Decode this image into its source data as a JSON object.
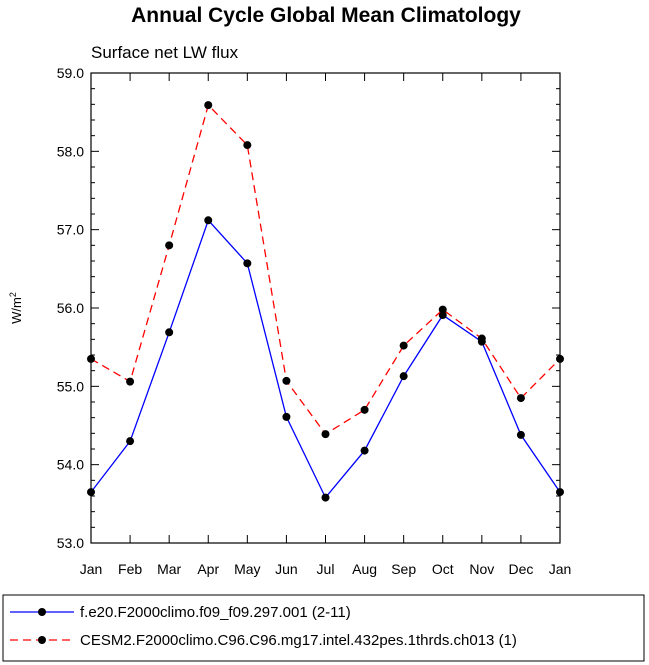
{
  "chart_data": {
    "type": "line",
    "title": "Annual Cycle Global Mean Climatology",
    "subtitle": "Surface net LW flux",
    "ylabel": "W/m",
    "ylabel_sup": "2",
    "categories": [
      "Jan",
      "Feb",
      "Mar",
      "Apr",
      "May",
      "Jun",
      "Jul",
      "Aug",
      "Sep",
      "Oct",
      "Nov",
      "Dec",
      "Jan"
    ],
    "ylim": [
      53.0,
      59.0
    ],
    "yticks": [
      "53.0",
      "54.0",
      "55.0",
      "56.0",
      "57.0",
      "58.0",
      "59.0"
    ],
    "series": [
      {
        "name": "f.e20.F2000climo.f09_f09.297.001 (2-11)",
        "color": "#0000ff",
        "dash": "solid",
        "values": [
          53.65,
          54.3,
          55.69,
          57.12,
          56.57,
          54.61,
          53.58,
          54.18,
          55.13,
          55.91,
          55.57,
          54.38,
          53.65
        ]
      },
      {
        "name": "CESM2.F2000climo.C96.C96.mg17.intel.432pes.1thrds.ch013 (1)",
        "color": "#ff0000",
        "dash": "dashed",
        "values": [
          55.35,
          55.06,
          56.8,
          58.59,
          58.08,
          55.07,
          54.39,
          54.7,
          55.52,
          55.98,
          55.61,
          54.85,
          55.35
        ]
      }
    ]
  }
}
